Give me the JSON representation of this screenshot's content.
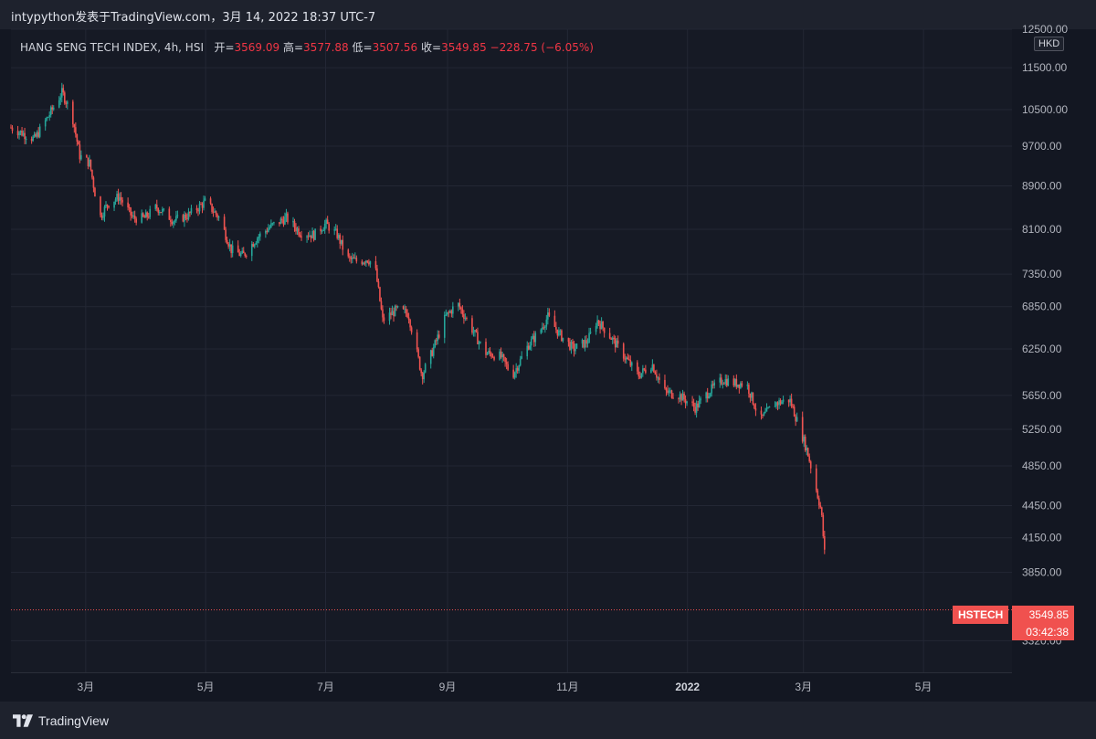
{
  "header": {
    "title": "intypython发表于TradingView.com，3月 14, 2022 18:37 UTC-7"
  },
  "legend": {
    "symbol": "HANG SENG TECH INDEX, 4h, HSI",
    "open_label": "开=",
    "open": "3569.09",
    "high_label": "高=",
    "high": "3577.88",
    "low_label": "低=",
    "low": "3507.56",
    "close_label": "收=",
    "close": "3549.85",
    "change": "−228.75 (−6.05%)"
  },
  "currency": "HKD",
  "last_price": {
    "ticker": "HSTECH",
    "value": "3549.85",
    "countdown": "03:42:38",
    "color": "#f0514f"
  },
  "footer": {
    "brand": "TradingView"
  },
  "colors": {
    "up": "#26a69a",
    "down": "#ef5350",
    "grid": "#232734",
    "axis_text": "#b2b5be"
  },
  "chart_data": {
    "type": "candlestick",
    "title": "HANG SENG TECH INDEX, 4h, HSI",
    "scale": "log",
    "ylim": [
      3100,
      12500
    ],
    "y_ticks": [
      12500,
      11500,
      10500,
      9700,
      8900,
      8100,
      7350,
      6850,
      6250,
      5650,
      5250,
      4850,
      4450,
      4150,
      3850,
      3320
    ],
    "y_tick_labels": [
      "12500.00",
      "11500.00",
      "10500.00",
      "9700.00",
      "8900.00",
      "8100.00",
      "7350.00",
      "6850.00",
      "6250.00",
      "5650.00",
      "5250.00",
      "4850.00",
      "4450.00",
      "4150.00",
      "3850.00",
      "3320.00"
    ],
    "x_ticks": [
      {
        "label": "3月",
        "date": "2021-03-01",
        "bold": false
      },
      {
        "label": "5月",
        "date": "2021-05-01",
        "bold": false
      },
      {
        "label": "7月",
        "date": "2021-07-01",
        "bold": false
      },
      {
        "label": "9月",
        "date": "2021-09-01",
        "bold": false
      },
      {
        "label": "11月",
        "date": "2021-11-01",
        "bold": false
      },
      {
        "label": "2022",
        "date": "2022-01-01",
        "bold": true
      },
      {
        "label": "3月",
        "date": "2022-03-01",
        "bold": false
      },
      {
        "label": "5月",
        "date": "2022-05-01",
        "bold": false
      }
    ],
    "xlim": [
      "2021-01-22",
      "2022-06-15"
    ],
    "path_points": [
      [
        "2021-01-22",
        10100
      ],
      [
        "2021-02-03",
        9850
      ],
      [
        "2021-02-10",
        10350
      ],
      [
        "2021-02-17",
        10900
      ],
      [
        "2021-02-22",
        10400
      ],
      [
        "2021-02-26",
        9500
      ],
      [
        "2021-03-03",
        9350
      ],
      [
        "2021-03-08",
        8300
      ],
      [
        "2021-03-12",
        8550
      ],
      [
        "2021-03-18",
        8700
      ],
      [
        "2021-03-25",
        8300
      ],
      [
        "2021-03-31",
        8300
      ],
      [
        "2021-04-06",
        8500
      ],
      [
        "2021-04-15",
        8250
      ],
      [
        "2021-04-22",
        8350
      ],
      [
        "2021-05-01",
        8600
      ],
      [
        "2021-05-08",
        8300
      ],
      [
        "2021-05-14",
        7750
      ],
      [
        "2021-05-20",
        7650
      ],
      [
        "2021-05-27",
        7950
      ],
      [
        "2021-06-03",
        8150
      ],
      [
        "2021-06-11",
        8300
      ],
      [
        "2021-06-18",
        8050
      ],
      [
        "2021-06-25",
        8000
      ],
      [
        "2021-07-01",
        8200
      ],
      [
        "2021-07-07",
        8000
      ],
      [
        "2021-07-12",
        7600
      ],
      [
        "2021-07-18",
        7550
      ],
      [
        "2021-07-22",
        7600
      ],
      [
        "2021-07-26",
        7500
      ],
      [
        "2021-07-30",
        6650
      ],
      [
        "2021-08-06",
        6800
      ],
      [
        "2021-08-12",
        6750
      ],
      [
        "2021-08-19",
        5900
      ],
      [
        "2021-08-24",
        6200
      ],
      [
        "2021-08-31",
        6700
      ],
      [
        "2021-09-06",
        6900
      ],
      [
        "2021-09-12",
        6600
      ],
      [
        "2021-09-20",
        6200
      ],
      [
        "2021-09-28",
        6150
      ],
      [
        "2021-10-04",
        5900
      ],
      [
        "2021-10-12",
        6300
      ],
      [
        "2021-10-18",
        6500
      ],
      [
        "2021-10-22",
        6700
      ],
      [
        "2021-10-28",
        6450
      ],
      [
        "2021-11-04",
        6250
      ],
      [
        "2021-11-11",
        6350
      ],
      [
        "2021-11-16",
        6650
      ],
      [
        "2021-11-22",
        6450
      ],
      [
        "2021-11-30",
        6150
      ],
      [
        "2021-12-07",
        5900
      ],
      [
        "2021-12-14",
        6050
      ],
      [
        "2021-12-20",
        5700
      ],
      [
        "2021-12-28",
        5650
      ],
      [
        "2022-01-05",
        5500
      ],
      [
        "2022-01-12",
        5700
      ],
      [
        "2022-01-19",
        5850
      ],
      [
        "2022-01-25",
        5800
      ],
      [
        "2022-01-31",
        5800
      ],
      [
        "2022-02-07",
        5350
      ],
      [
        "2022-02-14",
        5550
      ],
      [
        "2022-02-22",
        5600
      ],
      [
        "2022-02-28",
        5200
      ],
      [
        "2022-03-03",
        5000
      ],
      [
        "2022-03-07",
        4650
      ],
      [
        "2022-03-10",
        4400
      ],
      [
        "2022-03-14",
        3550
      ]
    ]
  }
}
